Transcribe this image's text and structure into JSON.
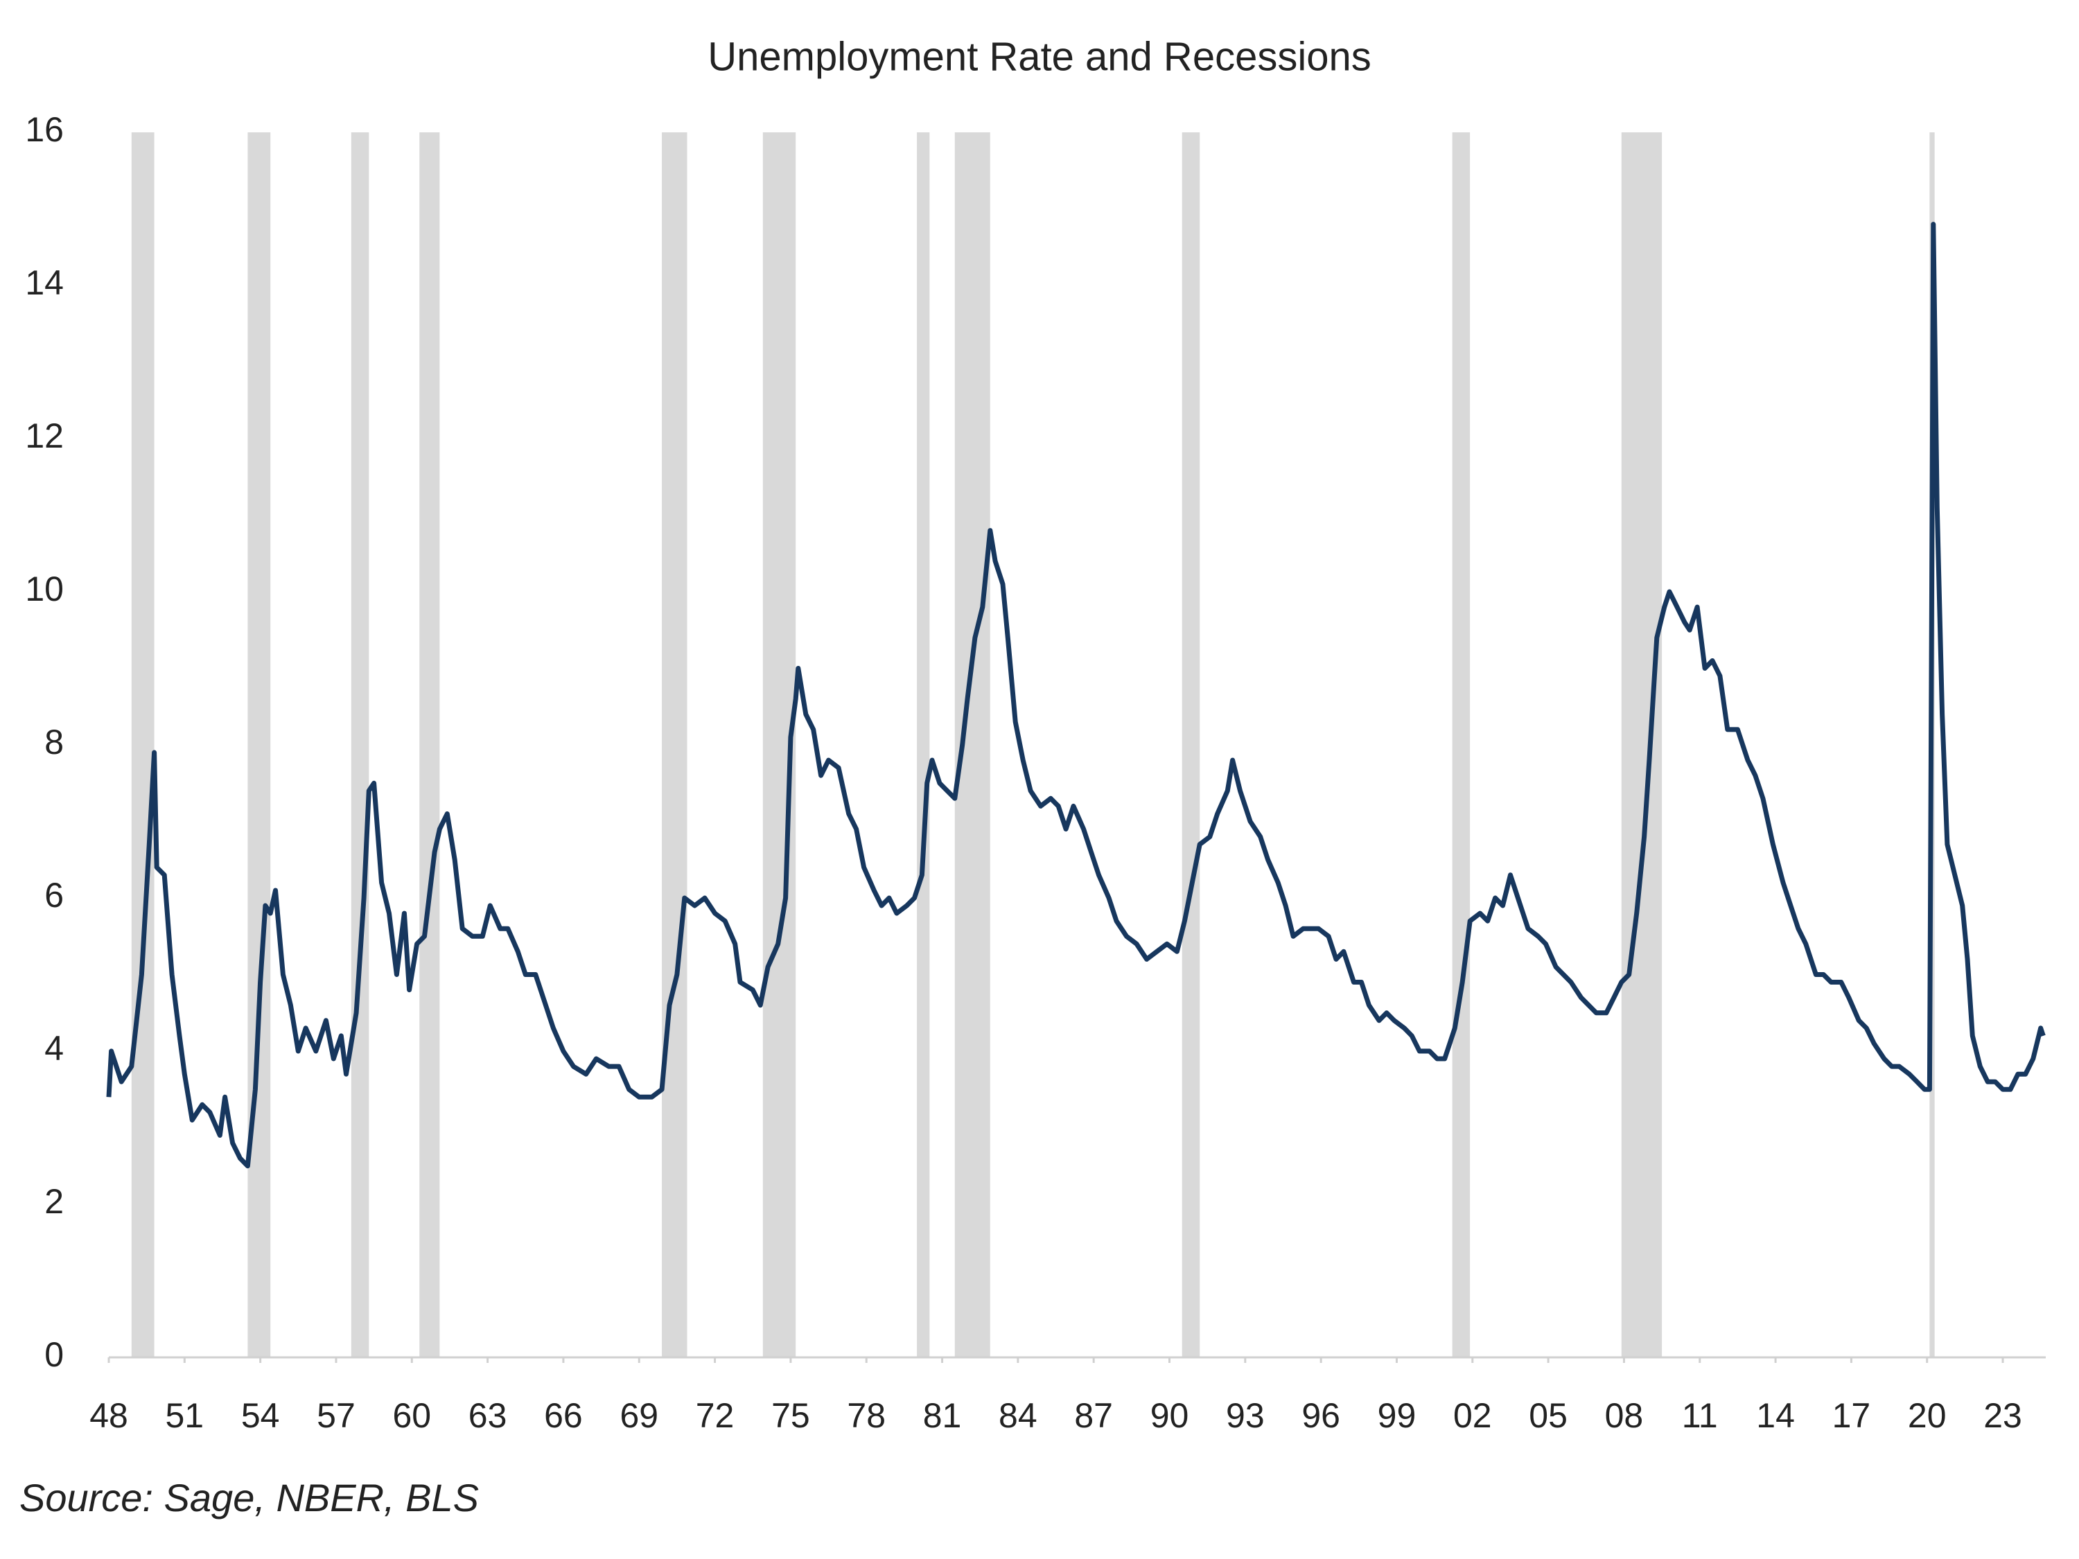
{
  "chart_data": {
    "type": "line",
    "title": "Unemployment Rate and Recessions",
    "source": "Source: Sage, NBER, BLS",
    "color": "#17375e",
    "recession_color": "#d9d9d9",
    "xlim": [
      1948,
      2024.7
    ],
    "ylim": [
      0,
      16
    ],
    "yticks": [
      0,
      2,
      4,
      6,
      8,
      10,
      12,
      14,
      16
    ],
    "xticks": [
      {
        "value": 1948,
        "label": "48"
      },
      {
        "value": 1951,
        "label": "51"
      },
      {
        "value": 1954,
        "label": "54"
      },
      {
        "value": 1957,
        "label": "57"
      },
      {
        "value": 1960,
        "label": "60"
      },
      {
        "value": 1963,
        "label": "63"
      },
      {
        "value": 1966,
        "label": "66"
      },
      {
        "value": 1969,
        "label": "69"
      },
      {
        "value": 1972,
        "label": "72"
      },
      {
        "value": 1975,
        "label": "75"
      },
      {
        "value": 1978,
        "label": "78"
      },
      {
        "value": 1981,
        "label": "81"
      },
      {
        "value": 1984,
        "label": "84"
      },
      {
        "value": 1987,
        "label": "87"
      },
      {
        "value": 1990,
        "label": "90"
      },
      {
        "value": 1993,
        "label": "93"
      },
      {
        "value": 1996,
        "label": "96"
      },
      {
        "value": 1999,
        "label": "99"
      },
      {
        "value": 2002,
        "label": "02"
      },
      {
        "value": 2005,
        "label": "05"
      },
      {
        "value": 2008,
        "label": "08"
      },
      {
        "value": 2011,
        "label": "11"
      },
      {
        "value": 2014,
        "label": "14"
      },
      {
        "value": 2017,
        "label": "17"
      },
      {
        "value": 2020,
        "label": "20"
      },
      {
        "value": 2023,
        "label": "23"
      }
    ],
    "recessions": [
      [
        1948.9,
        1949.8
      ],
      [
        1953.5,
        1954.4
      ],
      [
        1957.6,
        1958.3
      ],
      [
        1960.3,
        1961.1
      ],
      [
        1969.9,
        1970.9
      ],
      [
        1973.9,
        1975.2
      ],
      [
        1980.0,
        1980.5
      ],
      [
        1981.5,
        1982.9
      ],
      [
        1990.5,
        1991.2
      ],
      [
        2001.2,
        2001.9
      ],
      [
        2007.9,
        2009.5
      ],
      [
        2020.1,
        2020.3
      ]
    ],
    "x": [
      1948.0,
      1948.1,
      1948.5,
      1948.9,
      1949.3,
      1949.6,
      1949.8,
      1949.9,
      1950.2,
      1950.5,
      1950.8,
      1951.0,
      1951.3,
      1951.7,
      1952.0,
      1952.4,
      1952.6,
      1952.9,
      1953.2,
      1953.5,
      1953.8,
      1954.0,
      1954.2,
      1954.4,
      1954.6,
      1954.9,
      1955.2,
      1955.5,
      1955.8,
      1956.2,
      1956.6,
      1956.9,
      1957.2,
      1957.4,
      1957.8,
      1958.1,
      1958.3,
      1958.5,
      1958.8,
      1959.1,
      1959.4,
      1959.7,
      1959.9,
      1960.2,
      1960.5,
      1960.9,
      1961.1,
      1961.4,
      1961.7,
      1962.0,
      1962.4,
      1962.8,
      1963.1,
      1963.5,
      1963.8,
      1964.2,
      1964.5,
      1964.9,
      1965.2,
      1965.6,
      1966.0,
      1966.4,
      1966.9,
      1967.3,
      1967.8,
      1968.2,
      1968.6,
      1969.0,
      1969.5,
      1969.9,
      1970.2,
      1970.5,
      1970.8,
      1971.2,
      1971.6,
      1972.0,
      1972.4,
      1972.8,
      1973.0,
      1973.5,
      1973.8,
      1974.1,
      1974.5,
      1974.8,
      1975.0,
      1975.2,
      1975.3,
      1975.6,
      1975.9,
      1976.2,
      1976.5,
      1976.9,
      1977.3,
      1977.6,
      1977.9,
      1978.3,
      1978.6,
      1978.9,
      1979.2,
      1979.6,
      1979.9,
      1980.2,
      1980.4,
      1980.6,
      1980.9,
      1981.2,
      1981.5,
      1981.8,
      1982.0,
      1982.3,
      1982.6,
      1982.9,
      1983.1,
      1983.4,
      1983.6,
      1983.9,
      1984.2,
      1984.5,
      1984.9,
      1985.3,
      1985.6,
      1985.9,
      1986.2,
      1986.6,
      1986.9,
      1987.2,
      1987.6,
      1987.9,
      1988.3,
      1988.7,
      1989.1,
      1989.5,
      1989.9,
      1990.3,
      1990.6,
      1990.9,
      1991.2,
      1991.6,
      1991.9,
      1992.3,
      1992.5,
      1992.8,
      1993.2,
      1993.6,
      1993.9,
      1994.3,
      1994.6,
      1994.9,
      1995.3,
      1995.6,
      1995.9,
      1996.3,
      1996.6,
      1996.9,
      1997.3,
      1997.6,
      1997.9,
      1998.3,
      1998.6,
      1998.9,
      1999.3,
      1999.6,
      1999.9,
      2000.3,
      2000.6,
      2000.9,
      2001.3,
      2001.6,
      2001.9,
      2002.3,
      2002.6,
      2002.9,
      2003.2,
      2003.5,
      2003.8,
      2004.2,
      2004.6,
      2004.9,
      2005.3,
      2005.6,
      2005.9,
      2006.3,
      2006.6,
      2006.9,
      2007.3,
      2007.6,
      2007.9,
      2008.2,
      2008.5,
      2008.8,
      2009.0,
      2009.3,
      2009.6,
      2009.8,
      2010.1,
      2010.4,
      2010.6,
      2010.9,
      2011.2,
      2011.5,
      2011.8,
      2012.1,
      2012.5,
      2012.9,
      2013.2,
      2013.5,
      2013.9,
      2014.3,
      2014.6,
      2014.9,
      2015.2,
      2015.6,
      2015.9,
      2016.2,
      2016.6,
      2016.9,
      2017.3,
      2017.6,
      2017.9,
      2018.3,
      2018.6,
      2018.9,
      2019.3,
      2019.6,
      2019.9,
      2020.1,
      2020.25,
      2020.4,
      2020.6,
      2020.8,
      2021.1,
      2021.4,
      2021.6,
      2021.8,
      2022.1,
      2022.4,
      2022.7,
      2023.0,
      2023.3,
      2023.6,
      2023.9,
      2024.2,
      2024.5,
      2024.6
    ],
    "values": [
      3.4,
      4.0,
      3.6,
      3.8,
      5.0,
      6.7,
      7.9,
      6.4,
      6.3,
      5.0,
      4.2,
      3.7,
      3.1,
      3.3,
      3.2,
      2.9,
      3.4,
      2.8,
      2.6,
      2.5,
      3.5,
      4.9,
      5.9,
      5.8,
      6.1,
      5.0,
      4.6,
      4.0,
      4.3,
      4.0,
      4.4,
      3.9,
      4.2,
      3.7,
      4.5,
      6.0,
      7.4,
      7.5,
      6.2,
      5.8,
      5.0,
      5.8,
      4.8,
      5.4,
      5.5,
      6.6,
      6.9,
      7.1,
      6.5,
      5.6,
      5.5,
      5.5,
      5.9,
      5.6,
      5.6,
      5.3,
      5.0,
      5.0,
      4.7,
      4.3,
      4.0,
      3.8,
      3.7,
      3.9,
      3.8,
      3.8,
      3.5,
      3.4,
      3.4,
      3.5,
      4.6,
      5.0,
      6.0,
      5.9,
      6.0,
      5.8,
      5.7,
      5.4,
      4.9,
      4.8,
      4.6,
      5.1,
      5.4,
      6.0,
      8.1,
      8.6,
      9.0,
      8.4,
      8.2,
      7.6,
      7.8,
      7.7,
      7.1,
      6.9,
      6.4,
      6.1,
      5.9,
      6.0,
      5.8,
      5.9,
      6.0,
      6.3,
      7.5,
      7.8,
      7.5,
      7.4,
      7.3,
      8.0,
      8.6,
      9.4,
      9.8,
      10.8,
      10.4,
      10.1,
      9.4,
      8.3,
      7.8,
      7.4,
      7.2,
      7.3,
      7.2,
      6.9,
      7.2,
      6.9,
      6.6,
      6.3,
      6.0,
      5.7,
      5.5,
      5.4,
      5.2,
      5.3,
      5.4,
      5.3,
      5.7,
      6.2,
      6.7,
      6.8,
      7.1,
      7.4,
      7.8,
      7.4,
      7.0,
      6.8,
      6.5,
      6.2,
      5.9,
      5.5,
      5.6,
      5.6,
      5.6,
      5.5,
      5.2,
      5.3,
      4.9,
      4.9,
      4.6,
      4.4,
      4.5,
      4.4,
      4.3,
      4.2,
      4.0,
      4.0,
      3.9,
      3.9,
      4.3,
      4.9,
      5.7,
      5.8,
      5.7,
      6.0,
      5.9,
      6.3,
      6.0,
      5.6,
      5.5,
      5.4,
      5.1,
      5.0,
      4.9,
      4.7,
      4.6,
      4.5,
      4.5,
      4.7,
      4.9,
      5.0,
      5.8,
      6.8,
      7.8,
      9.4,
      9.8,
      10.0,
      9.8,
      9.6,
      9.5,
      9.8,
      9.0,
      9.1,
      8.9,
      8.2,
      8.2,
      7.8,
      7.6,
      7.3,
      6.7,
      6.2,
      5.9,
      5.6,
      5.4,
      5.0,
      5.0,
      4.9,
      4.9,
      4.7,
      4.4,
      4.3,
      4.1,
      3.9,
      3.8,
      3.8,
      3.7,
      3.6,
      3.5,
      3.5,
      14.8,
      11.1,
      8.4,
      6.7,
      6.3,
      5.9,
      5.2,
      4.2,
      3.8,
      3.6,
      3.6,
      3.5,
      3.5,
      3.7,
      3.7,
      3.9,
      4.3,
      4.2
    ]
  }
}
